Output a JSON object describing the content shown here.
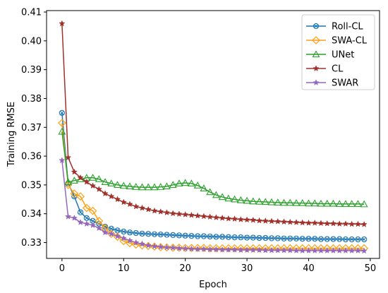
{
  "chart_data": {
    "type": "line",
    "title": "",
    "xlabel": "Epoch",
    "ylabel": "Training RMSE",
    "xlim": [
      -2.5,
      51.5
    ],
    "ylim": [
      0.3245,
      0.4105
    ],
    "xticks": [
      0,
      10,
      20,
      30,
      40,
      50
    ],
    "yticks": [
      0.33,
      0.34,
      0.35,
      0.36,
      0.37,
      0.38,
      0.39,
      0.4,
      0.41
    ],
    "ytick_labels": [
      "0.33",
      "0.34",
      "0.35",
      "0.36",
      "0.37",
      "0.38",
      "0.39",
      "0.40",
      "0.41"
    ],
    "grid": false,
    "legend_position": "top-right",
    "x": [
      0,
      1,
      2,
      3,
      4,
      5,
      6,
      7,
      8,
      9,
      10,
      11,
      12,
      13,
      14,
      15,
      16,
      17,
      18,
      19,
      20,
      21,
      22,
      23,
      24,
      25,
      26,
      27,
      28,
      29,
      30,
      31,
      32,
      33,
      34,
      35,
      36,
      37,
      38,
      39,
      40,
      41,
      42,
      43,
      44,
      45,
      46,
      47,
      48,
      49
    ],
    "series": [
      {
        "name": "Roll-CL",
        "color": "#1f77b4",
        "marker": "circle-x",
        "values": [
          0.375,
          0.3505,
          0.346,
          0.3405,
          0.3385,
          0.3375,
          0.3365,
          0.3355,
          0.3348,
          0.3342,
          0.3338,
          0.3335,
          0.3333,
          0.3331,
          0.333,
          0.3329,
          0.3328,
          0.3327,
          0.3326,
          0.3325,
          0.3324,
          0.3323,
          0.3322,
          0.3322,
          0.3321,
          0.332,
          0.332,
          0.3319,
          0.3318,
          0.3318,
          0.3317,
          0.3317,
          0.3316,
          0.3316,
          0.3315,
          0.3315,
          0.3314,
          0.3314,
          0.3314,
          0.3313,
          0.3313,
          0.3313,
          0.3312,
          0.3312,
          0.3312,
          0.3312,
          0.3311,
          0.3311,
          0.3311,
          0.3311
        ]
      },
      {
        "name": "SWA-CL",
        "color": "#ff9f10",
        "marker": "diamond",
        "values": [
          0.3715,
          0.35,
          0.347,
          0.346,
          0.342,
          0.341,
          0.3375,
          0.335,
          0.333,
          0.332,
          0.3305,
          0.3298,
          0.3293,
          0.329,
          0.3288,
          0.3286,
          0.3284,
          0.3283,
          0.3282,
          0.3282,
          0.3281,
          0.3281,
          0.3281,
          0.3281,
          0.328,
          0.328,
          0.328,
          0.328,
          0.328,
          0.328,
          0.328,
          0.328,
          0.328,
          0.328,
          0.328,
          0.328,
          0.328,
          0.328,
          0.328,
          0.328,
          0.328,
          0.328,
          0.328,
          0.328,
          0.328,
          0.328,
          0.328,
          0.328,
          0.328,
          0.328
        ]
      },
      {
        "name": "UNet",
        "color": "#2ca02c",
        "marker": "triangle-up",
        "values": [
          0.3685,
          0.351,
          0.3515,
          0.352,
          0.3525,
          0.3525,
          0.352,
          0.351,
          0.3505,
          0.35,
          0.3497,
          0.3495,
          0.3493,
          0.3492,
          0.3492,
          0.3492,
          0.3493,
          0.3495,
          0.35,
          0.3505,
          0.3507,
          0.3505,
          0.3498,
          0.3488,
          0.3475,
          0.3465,
          0.3458,
          0.3453,
          0.345,
          0.3447,
          0.3445,
          0.3443,
          0.3442,
          0.3441,
          0.344,
          0.3439,
          0.3438,
          0.3438,
          0.3437,
          0.3437,
          0.3436,
          0.3436,
          0.3435,
          0.3435,
          0.3435,
          0.3434,
          0.3434,
          0.3434,
          0.3434,
          0.3433
        ]
      },
      {
        "name": "CL",
        "color": "#a1302a",
        "marker": "star",
        "values": [
          0.406,
          0.3595,
          0.3545,
          0.3525,
          0.351,
          0.3497,
          0.3485,
          0.347,
          0.346,
          0.345,
          0.344,
          0.3433,
          0.3425,
          0.342,
          0.3415,
          0.341,
          0.3407,
          0.3404,
          0.3401,
          0.3399,
          0.3397,
          0.3395,
          0.3393,
          0.3391,
          0.3389,
          0.3387,
          0.3385,
          0.3383,
          0.3382,
          0.338,
          0.3379,
          0.3378,
          0.3376,
          0.3375,
          0.3374,
          0.3373,
          0.3372,
          0.3371,
          0.337,
          0.3369,
          0.3368,
          0.3368,
          0.3367,
          0.3366,
          0.3366,
          0.3365,
          0.3365,
          0.3364,
          0.3364,
          0.3363
        ]
      },
      {
        "name": "SWAR",
        "color": "#9467bd",
        "marker": "star",
        "values": [
          0.3585,
          0.339,
          0.3385,
          0.337,
          0.3365,
          0.336,
          0.335,
          0.3335,
          0.333,
          0.3322,
          0.3315,
          0.3307,
          0.33,
          0.3295,
          0.329,
          0.3287,
          0.3285,
          0.3283,
          0.3282,
          0.328,
          0.3279,
          0.3278,
          0.3277,
          0.3277,
          0.3276,
          0.3276,
          0.3275,
          0.3275,
          0.3275,
          0.3274,
          0.3274,
          0.3274,
          0.3274,
          0.3273,
          0.3273,
          0.3273,
          0.3273,
          0.3273,
          0.3272,
          0.3272,
          0.3272,
          0.3272,
          0.3272,
          0.3272,
          0.3272,
          0.3272,
          0.3272,
          0.3272,
          0.3272,
          0.3271
        ]
      }
    ]
  }
}
